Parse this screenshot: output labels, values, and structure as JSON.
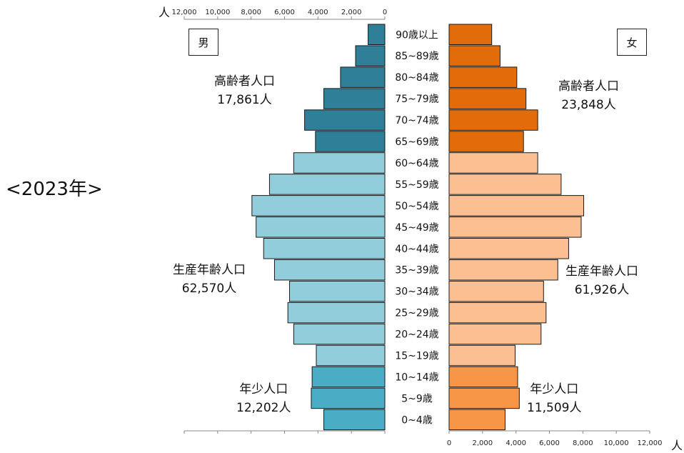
{
  "year_label": "<2023年>",
  "male_label": "男",
  "female_label": "女",
  "unit_label": "人",
  "colors": {
    "male_elderly": "#2E7F97",
    "male_working": "#92CDDC",
    "male_young": "#4BACC6",
    "female_elderly": "#E36C0A",
    "female_working": "#FBBF91",
    "female_young": "#F79646"
  },
  "groups": {
    "male_elderly": {
      "name": "高齢者人口",
      "value": "17,861人"
    },
    "male_working": {
      "name": "生産年齢人口",
      "value": "62,570人"
    },
    "male_young": {
      "name": "年少人口",
      "value": "12,202人"
    },
    "female_elderly": {
      "name": "高齢者人口",
      "value": "23,848人"
    },
    "female_working": {
      "name": "生産年齢人口",
      "value": "61,926人"
    },
    "female_young": {
      "name": "年少人口",
      "value": "11,509人"
    }
  },
  "chart_data": {
    "type": "bar",
    "orientation": "horizontal",
    "subtype": "population-pyramid",
    "categories": [
      "90歳以上",
      "85~89歳",
      "80~84歳",
      "75~79歳",
      "70~74歳",
      "65~69歳",
      "60~64歳",
      "55~59歳",
      "50~54歳",
      "45~49歳",
      "40~44歳",
      "35~39歳",
      "30~34歳",
      "25~29歳",
      "20~24歳",
      "15~19歳",
      "10~14歳",
      "5~9歳",
      "0~4歳"
    ],
    "series": [
      {
        "name": "男",
        "values": [
          1000,
          1750,
          2650,
          3650,
          4800,
          4150,
          5450,
          6900,
          7950,
          7700,
          7250,
          6600,
          5700,
          5800,
          5450,
          4100,
          4350,
          4400,
          3650
        ]
      },
      {
        "name": "女",
        "values": [
          2550,
          3050,
          4050,
          4600,
          5300,
          4450,
          5300,
          6700,
          8050,
          7900,
          7150,
          6500,
          5650,
          5800,
          5500,
          3950,
          4100,
          4200,
          3350
        ]
      }
    ],
    "group_of_category": [
      "elderly",
      "elderly",
      "elderly",
      "elderly",
      "elderly",
      "elderly",
      "working",
      "working",
      "working",
      "working",
      "working",
      "working",
      "working",
      "working",
      "working",
      "working",
      "young",
      "young",
      "young"
    ],
    "xlim": [
      0,
      12000
    ],
    "ticks": [
      "12,000",
      "10,000",
      "8,000",
      "6,000",
      "4,000",
      "2,000",
      "0"
    ],
    "ticks_right": [
      "0",
      "2,000",
      "4,000",
      "6,000",
      "8,000",
      "10,000",
      "12,000"
    ],
    "grid": false
  }
}
